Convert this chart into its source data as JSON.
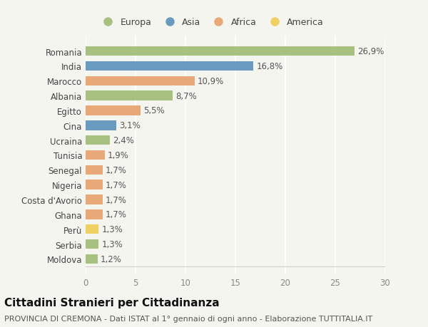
{
  "countries": [
    "Romania",
    "India",
    "Marocco",
    "Albania",
    "Egitto",
    "Cina",
    "Ucraina",
    "Tunisia",
    "Senegal",
    "Nigeria",
    "Costa d'Avorio",
    "Ghana",
    "Perù",
    "Serbia",
    "Moldova"
  ],
  "values": [
    26.9,
    16.8,
    10.9,
    8.7,
    5.5,
    3.1,
    2.4,
    1.9,
    1.7,
    1.7,
    1.7,
    1.7,
    1.3,
    1.3,
    1.2
  ],
  "labels": [
    "26,9%",
    "16,8%",
    "10,9%",
    "8,7%",
    "5,5%",
    "3,1%",
    "2,4%",
    "1,9%",
    "1,7%",
    "1,7%",
    "1,7%",
    "1,7%",
    "1,3%",
    "1,3%",
    "1,2%"
  ],
  "continents": [
    "Europa",
    "Asia",
    "Africa",
    "Europa",
    "Africa",
    "Asia",
    "Europa",
    "Africa",
    "Africa",
    "Africa",
    "Africa",
    "Africa",
    "America",
    "Europa",
    "Europa"
  ],
  "continent_colors": {
    "Europa": "#a8c080",
    "Asia": "#6a9abf",
    "Africa": "#e8a878",
    "America": "#f0d060"
  },
  "legend_order": [
    "Europa",
    "Asia",
    "Africa",
    "America"
  ],
  "xlim": [
    0,
    30
  ],
  "xticks": [
    0,
    5,
    10,
    15,
    20,
    25,
    30
  ],
  "title": "Cittadini Stranieri per Cittadinanza",
  "subtitle": "PROVINCIA DI CREMONA - Dati ISTAT al 1° gennaio di ogni anno - Elaborazione TUTTITALIA.IT",
  "background_color": "#f5f5f0",
  "grid_color": "#ffffff",
  "bar_height": 0.65,
  "title_fontsize": 11,
  "subtitle_fontsize": 8,
  "label_fontsize": 8.5,
  "tick_fontsize": 8.5,
  "legend_fontsize": 9
}
